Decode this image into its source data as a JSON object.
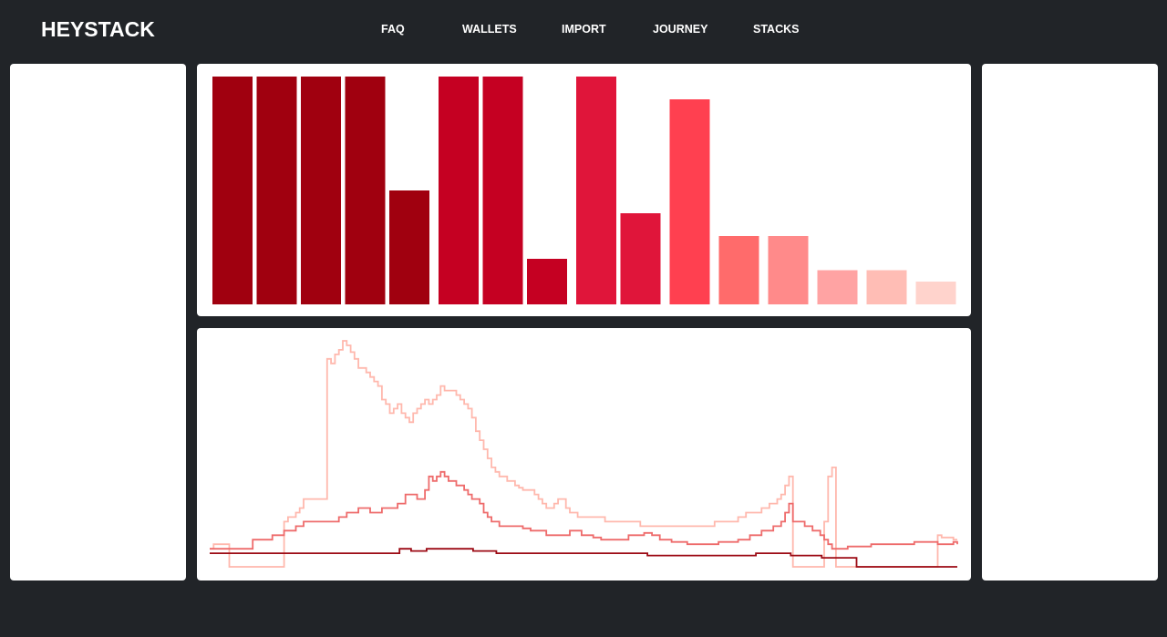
{
  "header": {
    "logo": "HEYSTACK",
    "nav": [
      "FAQ",
      "WALLETS",
      "IMPORT",
      "JOURNEY",
      "STACKS"
    ]
  },
  "colors": {
    "background": "#212428",
    "panel": "#ffffff",
    "bar_colors": [
      "#a0000f",
      "#c50022",
      "#e0153a",
      "#ff4050",
      "#ff6b6b",
      "#ff8a8a",
      "#ffa3a3",
      "#ffbdb5",
      "#ffd3cc"
    ]
  },
  "chart_data": [
    {
      "type": "bar",
      "title": "",
      "xlabel": "",
      "ylabel": "",
      "ylim": [
        0,
        100
      ],
      "grid": false,
      "values": [
        100,
        100,
        100,
        100,
        50,
        100,
        100,
        20,
        100,
        40,
        90,
        30,
        30,
        15,
        15,
        10
      ],
      "groups": [
        0,
        0,
        0,
        0,
        0,
        1,
        1,
        1,
        2,
        2,
        3,
        4,
        5,
        6,
        7,
        8
      ]
    },
    {
      "type": "line",
      "title": "",
      "xlabel": "",
      "ylabel": "",
      "grid": false,
      "series": [
        {
          "color": "#ffb8ad",
          "values": [
            8,
            10,
            10,
            10,
            10,
            0,
            0,
            0,
            0,
            0,
            0,
            0,
            0,
            0,
            0,
            0,
            0,
            0,
            0,
            20,
            22,
            22,
            24,
            26,
            30,
            30,
            30,
            30,
            30,
            30,
            92,
            90,
            94,
            96,
            100,
            98,
            95,
            92,
            88,
            88,
            86,
            84,
            82,
            80,
            74,
            72,
            68,
            70,
            72,
            68,
            66,
            64,
            68,
            70,
            72,
            74,
            72,
            74,
            76,
            80,
            78,
            78,
            78,
            76,
            74,
            72,
            70,
            66,
            60,
            56,
            52,
            48,
            44,
            42,
            40,
            40,
            38,
            38,
            36,
            35,
            34,
            34,
            34,
            32,
            30,
            28,
            26,
            26,
            28,
            30,
            30,
            26,
            24,
            24,
            22,
            22,
            22,
            22,
            22,
            22,
            22,
            20,
            20,
            20,
            20,
            20,
            20,
            20,
            20,
            20,
            18,
            18,
            18,
            18,
            18,
            18,
            18,
            18,
            18,
            18,
            18,
            18,
            18,
            18,
            18,
            18,
            18,
            18,
            18,
            20,
            20,
            20,
            20,
            20,
            20,
            22,
            22,
            24,
            24,
            24,
            24,
            26,
            26,
            28,
            28,
            30,
            32,
            36,
            40,
            0,
            0,
            0,
            0,
            0,
            0,
            0,
            0,
            20,
            40,
            44,
            0,
            0,
            0,
            0,
            0,
            0,
            0,
            0,
            0,
            0,
            0,
            0,
            0,
            0,
            0,
            0,
            0,
            0,
            0,
            0,
            0,
            0,
            0,
            0,
            0,
            0,
            14,
            13,
            13,
            13,
            12,
            12
          ]
        },
        {
          "color": "#ee6b6b",
          "values": [
            8,
            8,
            8,
            8,
            8,
            8,
            8,
            8,
            8,
            8,
            8,
            12,
            12,
            12,
            12,
            12,
            14,
            14,
            14,
            16,
            16,
            16,
            18,
            18,
            20,
            20,
            20,
            20,
            20,
            20,
            20,
            20,
            20,
            22,
            22,
            24,
            24,
            24,
            26,
            26,
            26,
            24,
            24,
            24,
            26,
            26,
            26,
            26,
            28,
            28,
            32,
            32,
            32,
            30,
            30,
            34,
            40,
            38,
            40,
            42,
            40,
            38,
            38,
            36,
            36,
            34,
            32,
            30,
            30,
            28,
            24,
            22,
            20,
            20,
            18,
            18,
            18,
            18,
            18,
            18,
            17,
            17,
            16,
            16,
            16,
            16,
            14,
            14,
            14,
            14,
            14,
            14,
            16,
            16,
            16,
            14,
            14,
            14,
            13,
            13,
            12,
            12,
            12,
            12,
            12,
            12,
            12,
            14,
            14,
            14,
            14,
            15,
            15,
            14,
            14,
            12,
            12,
            12,
            11,
            11,
            11,
            11,
            10,
            10,
            10,
            10,
            10,
            10,
            10,
            10,
            11,
            11,
            11,
            11,
            11,
            12,
            12,
            12,
            14,
            14,
            14,
            16,
            16,
            16,
            18,
            18,
            20,
            24,
            28,
            20,
            20,
            20,
            18,
            18,
            16,
            16,
            14,
            12,
            10,
            8,
            8,
            8,
            8,
            9,
            9,
            9,
            9,
            9,
            9,
            10,
            10,
            10,
            10,
            10,
            10,
            10,
            10,
            10,
            10,
            10,
            11,
            11,
            11,
            11,
            11,
            11,
            10,
            10,
            10,
            10,
            11,
            10
          ]
        },
        {
          "color": "#9c0a14",
          "values": [
            6,
            6,
            6,
            6,
            6,
            6,
            6,
            6,
            6,
            6,
            6,
            6,
            6,
            6,
            6,
            6,
            6,
            6,
            6,
            6,
            6,
            6,
            6,
            6,
            6,
            6,
            6,
            6,
            6,
            6,
            6,
            6,
            6,
            6,
            6,
            6,
            6,
            6,
            6,
            6,
            6,
            6,
            6,
            6,
            6,
            6,
            6,
            6,
            6,
            8,
            8,
            8,
            7,
            7,
            7,
            7,
            8,
            8,
            8,
            8,
            8,
            8,
            8,
            8,
            8,
            8,
            8,
            8,
            7,
            7,
            7,
            7,
            7,
            7,
            6,
            6,
            6,
            6,
            6,
            6,
            6,
            6,
            6,
            6,
            6,
            6,
            6,
            6,
            6,
            6,
            6,
            6,
            6,
            6,
            6,
            6,
            6,
            6,
            6,
            6,
            6,
            6,
            6,
            6,
            6,
            6,
            6,
            6,
            6,
            6,
            6,
            6,
            6,
            5,
            5,
            5,
            5,
            5,
            5,
            5,
            5,
            5,
            5,
            5,
            5,
            5,
            5,
            5,
            5,
            5,
            5,
            5,
            5,
            5,
            5,
            5,
            5,
            5,
            5,
            5,
            5,
            6,
            6,
            6,
            6,
            6,
            6,
            6,
            6,
            6,
            5,
            5,
            5,
            5,
            5,
            5,
            5,
            5,
            4,
            4,
            4,
            4,
            4,
            4,
            4,
            4,
            4,
            0,
            0,
            0,
            0,
            0,
            0,
            0,
            0,
            0,
            0,
            0,
            0,
            0,
            0,
            0,
            0,
            0,
            0,
            0,
            0,
            0,
            0,
            0,
            0,
            0,
            0,
            0
          ]
        }
      ]
    }
  ]
}
